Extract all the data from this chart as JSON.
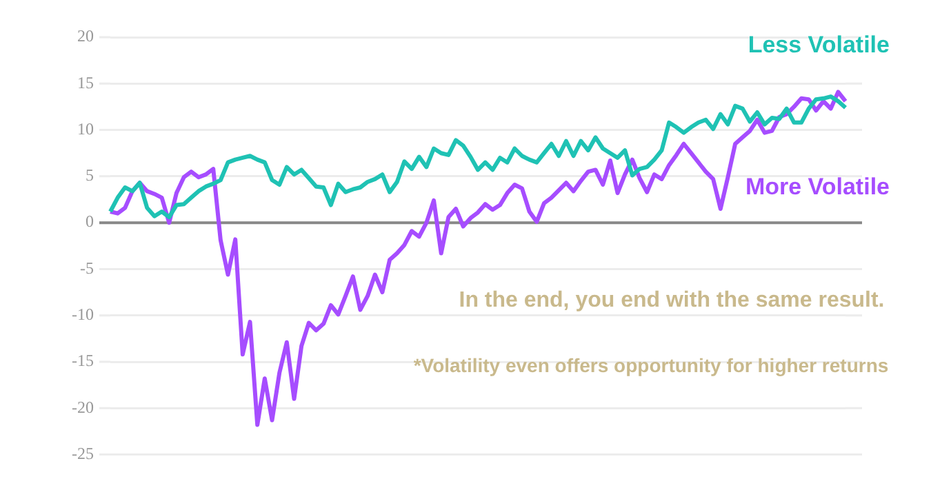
{
  "chart_data": {
    "type": "line",
    "annotations": [
      "In the end, you end with the same result.",
      "*Volatility even offers opportunity for higher returns"
    ],
    "categories": [
      null,
      null,
      null,
      null,
      null,
      null,
      null,
      null,
      null,
      null,
      null,
      null,
      null,
      null,
      null,
      null,
      null,
      null,
      null,
      null,
      null,
      null,
      null,
      null,
      null,
      null,
      null,
      null,
      null,
      null,
      null,
      null,
      null,
      null,
      null,
      null,
      null,
      null,
      null,
      null,
      null,
      null,
      null,
      null,
      null,
      null,
      null,
      null,
      null,
      null,
      null,
      null,
      null,
      null,
      null,
      null,
      null,
      null,
      null,
      null,
      null,
      null,
      null,
      null,
      null,
      null,
      null,
      null,
      null,
      null,
      null,
      null,
      null,
      null,
      null,
      null,
      null,
      null,
      null,
      null,
      null,
      null,
      null,
      null,
      null,
      null,
      null,
      null,
      null,
      null,
      null,
      null,
      null,
      null,
      null,
      null,
      null,
      null,
      null,
      null,
      null
    ],
    "ylim": [
      -25,
      20
    ],
    "yticks": [
      -25,
      -20,
      -15,
      -10,
      -5,
      0,
      5,
      10,
      15,
      20
    ],
    "tick_labels": "y",
    "grid": "y",
    "legend": false,
    "marker": "none",
    "line_style": "solid",
    "ref_lines": [
      {
        "axis": "y",
        "value": 0,
        "color": "#888888"
      }
    ],
    "series": [
      {
        "name": "Less Volatile",
        "color": "#1fc2b4",
        "values": [
          1.2,
          2.7,
          3.8,
          3.4,
          4.3,
          1.6,
          0.7,
          1.2,
          0.6,
          1.9,
          2.0,
          2.7,
          3.4,
          3.9,
          4.2,
          4.6,
          6.5,
          6.8,
          7.0,
          7.2,
          6.8,
          6.5,
          4.6,
          4.1,
          6.0,
          5.2,
          5.7,
          4.8,
          3.9,
          3.8,
          1.9,
          4.2,
          3.3,
          3.6,
          3.8,
          4.4,
          4.7,
          5.2,
          3.3,
          4.4,
          6.6,
          5.8,
          7.1,
          6.0,
          8.0,
          7.5,
          7.3,
          8.9,
          8.3,
          7.1,
          5.7,
          6.5,
          5.7,
          7.0,
          6.5,
          8.0,
          7.2,
          6.8,
          6.5,
          7.5,
          8.5,
          7.2,
          8.8,
          7.2,
          8.8,
          7.8,
          9.2,
          8.0,
          7.5,
          7.0,
          7.8,
          5.1,
          5.8,
          6.0,
          6.8,
          7.8,
          10.8,
          10.3,
          9.7,
          10.3,
          10.8,
          11.1,
          10.1,
          11.7,
          10.6,
          12.6,
          12.3,
          10.9,
          11.9,
          10.6,
          11.3,
          11.2,
          12.3,
          10.8,
          10.8,
          12.3,
          13.3,
          13.4,
          13.6,
          13.1,
          12.4
        ]
      },
      {
        "name": "More Volatile",
        "color": "#a64dff",
        "values": [
          1.2,
          1.0,
          1.6,
          3.4,
          4.3,
          3.4,
          3.1,
          2.7,
          0,
          3.2,
          4.9,
          5.5,
          4.9,
          5.2,
          5.8,
          -1.9,
          -5.6,
          -1.8,
          -14.2,
          -10.7,
          -21.8,
          -16.8,
          -21.3,
          -16.2,
          -12.9,
          -19.0,
          -13.3,
          -10.8,
          -11.6,
          -10.9,
          -8.9,
          -9.9,
          -7.9,
          -5.8,
          -9.4,
          -7.9,
          -5.6,
          -7.5,
          -4.0,
          -3.3,
          -2.4,
          -0.9,
          -1.5,
          0,
          2.4,
          -3.3,
          0.6,
          1.5,
          -0.4,
          0.5,
          1.1,
          2.0,
          1.4,
          1.9,
          3.2,
          4.1,
          3.7,
          1.2,
          0.1,
          2.1,
          2.7,
          3.5,
          4.3,
          3.4,
          4.5,
          5.5,
          5.7,
          4.1,
          6.7,
          3.2,
          5.2,
          6.8,
          4.8,
          3.3,
          5.2,
          4.7,
          6.2,
          7.3,
          8.5,
          7.5,
          6.5,
          5.5,
          4.7,
          1.5,
          4.9,
          8.5,
          9.2,
          9.9,
          11.1,
          9.7,
          9.9,
          11.4,
          11.7,
          12.5,
          13.4,
          13.3,
          12.1,
          13.1,
          12.3,
          14.1,
          13.1
        ]
      }
    ]
  }
}
